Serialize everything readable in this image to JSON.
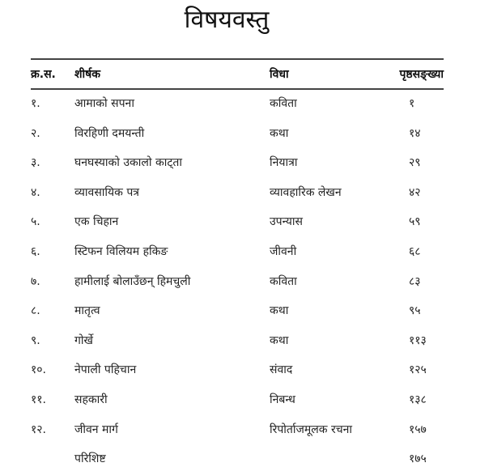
{
  "title": "विषयवस्तु",
  "headers": {
    "number": "क्र.स.",
    "title": "शीर्षक",
    "genre": "विधा",
    "page": "पृष्ठसङ्ख्या"
  },
  "rows": [
    {
      "number": "१.",
      "title": "आमाको सपना",
      "genre": "कविता",
      "page": "१"
    },
    {
      "number": "२.",
      "title": "विरहिणी दमयन्ती",
      "genre": "कथा",
      "page": "१४"
    },
    {
      "number": "३.",
      "title": "घनघस्याको उकालो काट्ता",
      "genre": "नियात्रा",
      "page": "२९"
    },
    {
      "number": "४.",
      "title": "व्यावसायिक पत्र",
      "genre": "व्यावहारिक लेखन",
      "page": "४२"
    },
    {
      "number": "५.",
      "title": "एक चिहान",
      "genre": "उपन्यास",
      "page": "५९"
    },
    {
      "number": "६.",
      "title": "स्टिफन विलियम हकिङ",
      "genre": "जीवनी",
      "page": "६८"
    },
    {
      "number": "७.",
      "title": "हामीलाई बोलाउँछन् हिमचुली",
      "genre": "कविता",
      "page": "८३"
    },
    {
      "number": "८.",
      "title": "मातृत्व",
      "genre": "कथा",
      "page": "९५"
    },
    {
      "number": "९.",
      "title": "गोर्खे",
      "genre": "कथा",
      "page": "११३"
    },
    {
      "number": "१०.",
      "title": "नेपाली पहिचान",
      "genre": "संवाद",
      "page": "१२५"
    },
    {
      "number": "११.",
      "title": "सहकारी",
      "genre": "निबन्ध",
      "page": "१३८"
    },
    {
      "number": "१२.",
      "title": "जीवन मार्ग",
      "genre": "रिपोर्ताजमूलक रचना",
      "page": "१५७"
    },
    {
      "number": "",
      "title": "परिशिष्ट",
      "genre": "",
      "page": "१७५"
    }
  ]
}
